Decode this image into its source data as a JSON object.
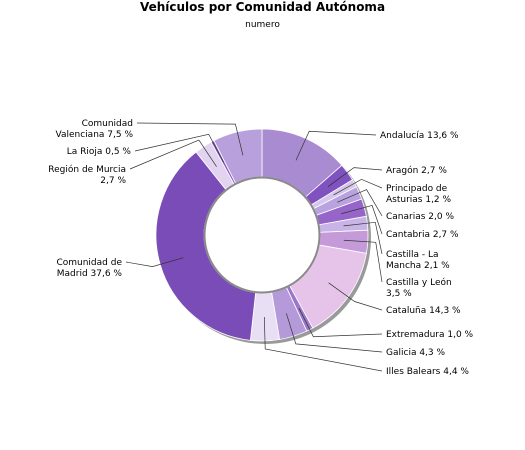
{
  "chart_data": {
    "type": "pie",
    "title": "Vehículos por Comunidad Autónoma",
    "subtitle": "numero",
    "slices": [
      {
        "label": "Andalucía 13,6 %",
        "value": 13.6,
        "color": "#a98bd2"
      },
      {
        "label": "Aragón 2,7 %",
        "value": 2.7,
        "color": "#7f52bf"
      },
      {
        "label": "Principado de Asturias 1,2 %",
        "value": 1.2,
        "color": "#d5c6ec"
      },
      {
        "label": "Canarias 2,0 %",
        "value": 2.0,
        "color": "#b9a3de"
      },
      {
        "label": "Cantabria 2,7 %",
        "value": 2.7,
        "color": "#9565c9"
      },
      {
        "label": "Castilla - La Mancha 2,1 %",
        "value": 2.1,
        "color": "#c8b4e6"
      },
      {
        "label": "Castilla y León 3,5 %",
        "value": 3.5,
        "color": "#c59ad9"
      },
      {
        "label": "Cataluña 14,3 %",
        "value": 14.3,
        "color": "#e6c3e8"
      },
      {
        "label": "Extremadura 1,0 %",
        "value": 1.0,
        "color": "#9a77c9"
      },
      {
        "label": "Galicia 4,3 %",
        "value": 4.3,
        "color": "#b59ad9"
      },
      {
        "label": "Illes Balears 4,4 %",
        "value": 4.4,
        "color": "#e8dff5"
      },
      {
        "label": "Comunidad de Madrid 37,6 %",
        "value": 37.6,
        "color": "#7a4cb8"
      },
      {
        "label": "Región de Murcia 2,7 %",
        "value": 2.7,
        "color": "#e2d3f1"
      },
      {
        "label": "La Rioja 0,5 %",
        "value": 0.5,
        "color": "#8e62c4"
      },
      {
        "label": "Comunidad Valenciana 7,5 %",
        "value": 7.5,
        "color": "#b8a0dc"
      }
    ],
    "legend": "labels-around",
    "inner_hole": true
  }
}
